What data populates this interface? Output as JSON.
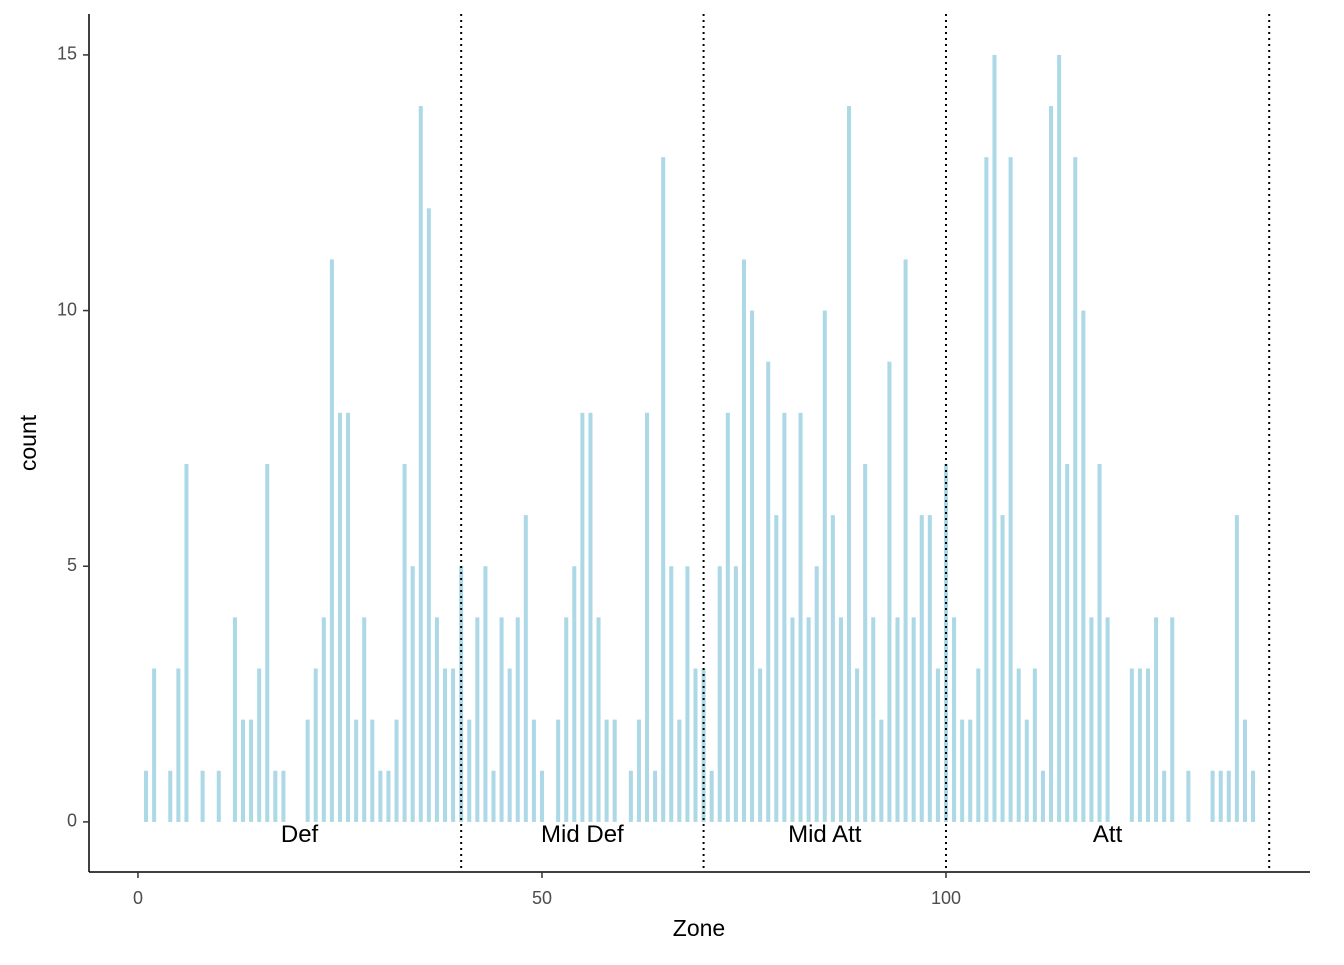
{
  "chart_data": {
    "type": "bar",
    "xlabel": "Zone",
    "ylabel": "count",
    "x": [
      1,
      2,
      4,
      5,
      6,
      8,
      10,
      12,
      13,
      14,
      15,
      16,
      17,
      18,
      21,
      22,
      23,
      24,
      25,
      26,
      27,
      28,
      29,
      30,
      31,
      32,
      33,
      34,
      35,
      36,
      37,
      38,
      39,
      40,
      41,
      42,
      43,
      44,
      45,
      46,
      47,
      48,
      49,
      50,
      52,
      53,
      54,
      55,
      56,
      57,
      58,
      59,
      61,
      62,
      63,
      64,
      65,
      66,
      67,
      68,
      69,
      70,
      71,
      72,
      73,
      74,
      75,
      76,
      77,
      78,
      79,
      80,
      81,
      82,
      83,
      84,
      85,
      86,
      87,
      88,
      89,
      90,
      91,
      92,
      93,
      94,
      95,
      96,
      97,
      98,
      99,
      100,
      101,
      102,
      103,
      104,
      105,
      106,
      107,
      108,
      109,
      110,
      111,
      112,
      113,
      114,
      115,
      116,
      117,
      118,
      119,
      120,
      123,
      124,
      125,
      126,
      127,
      128,
      130,
      133,
      134,
      135,
      136,
      137,
      138
    ],
    "values": [
      1,
      3,
      1,
      3,
      7,
      1,
      1,
      4,
      2,
      2,
      3,
      7,
      1,
      1,
      2,
      3,
      4,
      11,
      8,
      8,
      2,
      4,
      2,
      1,
      1,
      2,
      7,
      5,
      14,
      12,
      4,
      3,
      3,
      5,
      2,
      4,
      5,
      1,
      4,
      3,
      4,
      6,
      2,
      1,
      2,
      4,
      5,
      8,
      8,
      4,
      2,
      2,
      1,
      2,
      8,
      1,
      13,
      5,
      2,
      5,
      3,
      3,
      1,
      5,
      8,
      5,
      11,
      10,
      3,
      9,
      6,
      8,
      4,
      8,
      4,
      5,
      10,
      6,
      4,
      14,
      3,
      7,
      4,
      2,
      9,
      4,
      11,
      4,
      6,
      6,
      3,
      7,
      4,
      2,
      2,
      3,
      13,
      15,
      6,
      13,
      3,
      2,
      3,
      1,
      14,
      15,
      7,
      13,
      10,
      4,
      7,
      4,
      3,
      3,
      3,
      4,
      1,
      4,
      1,
      1,
      1,
      1,
      6,
      2,
      1
    ],
    "color": "#add8e6",
    "xlim": [
      -6.06,
      145.05
    ],
    "xticks": [
      0,
      50,
      100
    ],
    "ylim": [
      -0.98,
      15.8
    ],
    "yticks": [
      0,
      5,
      10,
      15
    ],
    "vlines": [
      40,
      70,
      100,
      140
    ],
    "annotations": [
      {
        "text": "Def",
        "x": 20
      },
      {
        "text": "Mid Def",
        "x": 55
      },
      {
        "text": "Mid Att",
        "x": 85
      },
      {
        "text": "Att",
        "x": 120
      }
    ]
  }
}
